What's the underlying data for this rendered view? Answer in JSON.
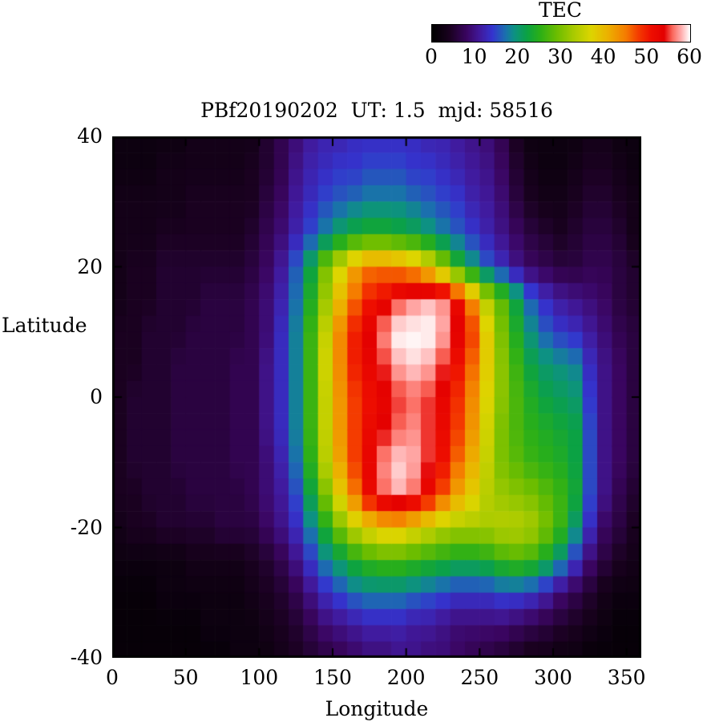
{
  "chart_data": {
    "type": "heatmap",
    "title": "PBf20190202  UT: 1.5  mjd: 58516",
    "xlabel": "Longitude",
    "ylabel": "Latitude",
    "xlim": [
      0,
      360
    ],
    "ylim": [
      -40,
      40
    ],
    "x_start": 0,
    "x_step": 10,
    "y_start": 40,
    "y_step": -5,
    "xtick_values": [
      0,
      50,
      100,
      150,
      200,
      250,
      300,
      350
    ],
    "xtick_labels": [
      "0",
      "50",
      "100",
      "150",
      "200",
      "250",
      "300",
      "350"
    ],
    "ytick_values": [
      40,
      20,
      0,
      -20,
      -40
    ],
    "ytick_labels": [
      "40",
      "20",
      "0",
      "-20",
      "-40"
    ],
    "colorbar": {
      "title": "TEC",
      "min": 0,
      "max": 60,
      "tick_values": [
        0,
        10,
        20,
        30,
        40,
        50,
        60
      ],
      "tick_labels": [
        "0",
        "10",
        "20",
        "30",
        "40",
        "50",
        "60"
      ]
    },
    "units": "TEC",
    "values": [
      [
        2,
        2,
        2,
        2,
        2,
        3,
        3,
        3,
        3,
        3,
        5,
        7,
        9,
        11,
        12,
        12,
        13,
        13,
        13,
        13,
        13,
        12,
        12,
        11,
        10,
        9,
        7,
        4,
        2,
        2,
        2,
        2,
        3,
        3,
        2,
        2
      ],
      [
        2,
        2,
        2,
        3,
        3,
        3,
        3,
        3,
        3,
        4,
        5,
        7,
        10,
        12,
        13,
        14,
        14,
        15,
        15,
        15,
        14,
        14,
        13,
        12,
        11,
        10,
        8,
        5,
        3,
        2,
        2,
        3,
        4,
        4,
        3,
        2
      ],
      [
        3,
        3,
        3,
        3,
        3,
        4,
        4,
        4,
        4,
        4,
        6,
        8,
        11,
        13,
        15,
        16,
        17,
        18,
        18,
        18,
        17,
        16,
        15,
        14,
        12,
        11,
        9,
        6,
        4,
        3,
        3,
        4,
        5,
        5,
        4,
        3
      ],
      [
        3,
        3,
        3,
        4,
        4,
        4,
        4,
        4,
        4,
        5,
        7,
        9,
        12,
        15,
        18,
        21,
        23,
        24,
        24,
        23,
        22,
        20,
        18,
        16,
        14,
        12,
        10,
        8,
        6,
        5,
        4,
        5,
        6,
        6,
        5,
        3
      ],
      [
        3,
        4,
        4,
        5,
        5,
        5,
        5,
        5,
        5,
        6,
        8,
        11,
        16,
        22,
        30,
        36,
        42,
        45,
        45,
        44,
        42,
        38,
        32,
        25,
        20,
        16,
        13,
        10,
        8,
        7,
        6,
        6,
        7,
        7,
        6,
        5
      ],
      [
        3,
        4,
        4,
        5,
        5,
        5,
        6,
        6,
        6,
        7,
        9,
        12,
        17,
        24,
        32,
        40,
        46,
        50,
        52,
        55,
        57,
        58,
        57,
        52,
        44,
        34,
        28,
        22,
        16,
        13,
        11,
        10,
        9,
        8,
        6,
        5
      ],
      [
        4,
        4,
        5,
        5,
        5,
        6,
        6,
        6,
        6,
        7,
        9,
        13,
        18,
        26,
        35,
        44,
        50,
        54,
        57,
        60,
        60,
        60,
        58,
        54,
        48,
        38,
        30,
        24,
        19,
        16,
        14,
        13,
        11,
        9,
        7,
        6
      ],
      [
        4,
        4,
        5,
        5,
        6,
        6,
        6,
        6,
        7,
        7,
        10,
        13,
        18,
        26,
        36,
        44,
        50,
        53,
        55,
        58,
        59,
        58,
        55,
        51,
        46,
        38,
        31,
        26,
        22,
        20,
        19,
        18,
        13,
        10,
        8,
        6
      ],
      [
        4,
        5,
        5,
        5,
        6,
        6,
        6,
        6,
        7,
        7,
        10,
        13,
        18,
        26,
        35,
        43,
        48,
        51,
        53,
        55,
        56,
        55,
        53,
        49,
        44,
        37,
        31,
        27,
        24,
        22,
        21,
        20,
        14,
        10,
        8,
        6
      ],
      [
        4,
        5,
        5,
        5,
        6,
        6,
        6,
        6,
        7,
        7,
        10,
        13,
        18,
        26,
        35,
        43,
        48,
        52,
        54,
        56,
        57,
        55,
        52,
        48,
        43,
        36,
        30,
        27,
        25,
        24,
        23,
        22,
        15,
        10,
        8,
        6
      ],
      [
        4,
        5,
        5,
        5,
        6,
        6,
        6,
        6,
        7,
        7,
        9,
        12,
        17,
        25,
        34,
        42,
        48,
        53,
        57,
        59,
        58,
        55,
        51,
        46,
        41,
        35,
        30,
        28,
        26,
        25,
        24,
        22,
        15,
        10,
        8,
        6
      ],
      [
        4,
        4,
        5,
        5,
        5,
        6,
        6,
        6,
        6,
        7,
        9,
        11,
        15,
        22,
        30,
        38,
        45,
        52,
        56,
        58,
        56,
        52,
        47,
        42,
        38,
        34,
        32,
        31,
        30,
        28,
        26,
        23,
        15,
        10,
        7,
        5
      ],
      [
        3,
        4,
        4,
        5,
        5,
        5,
        5,
        6,
        6,
        6,
        8,
        10,
        13,
        18,
        24,
        30,
        35,
        38,
        40,
        40,
        38,
        36,
        34,
        33,
        33,
        33,
        34,
        34,
        33,
        30,
        26,
        20,
        13,
        8,
        6,
        4
      ],
      [
        2,
        2,
        2,
        2,
        2,
        3,
        3,
        3,
        3,
        4,
        5,
        7,
        10,
        14,
        18,
        21,
        24,
        26,
        27,
        27,
        26,
        25,
        24,
        23,
        23,
        24,
        26,
        27,
        26,
        23,
        19,
        14,
        9,
        6,
        4,
        3
      ],
      [
        1,
        1,
        1,
        2,
        2,
        2,
        2,
        2,
        2,
        3,
        4,
        5,
        7,
        10,
        13,
        15,
        17,
        18,
        18,
        18,
        17,
        16,
        15,
        14,
        14,
        14,
        15,
        15,
        14,
        12,
        9,
        7,
        5,
        3,
        2,
        2
      ],
      [
        1,
        1,
        1,
        1,
        1,
        1,
        2,
        2,
        2,
        2,
        3,
        4,
        5,
        7,
        9,
        10,
        11,
        12,
        12,
        12,
        11,
        11,
        10,
        9,
        9,
        9,
        9,
        8,
        7,
        6,
        5,
        4,
        3,
        2,
        1,
        1
      ],
      [
        1,
        1,
        1,
        1,
        1,
        1,
        1,
        1,
        2,
        2,
        2,
        3,
        4,
        5,
        6,
        7,
        8,
        9,
        9,
        10,
        10,
        9,
        9,
        8,
        7,
        6,
        5,
        4,
        3,
        3,
        2,
        2,
        1,
        1,
        1,
        1
      ]
    ],
    "colormap_stops": [
      [
        0,
        "#000000"
      ],
      [
        4,
        "#1a0120"
      ],
      [
        8,
        "#3a0560"
      ],
      [
        11,
        "#41199b"
      ],
      [
        14,
        "#3434cf"
      ],
      [
        17,
        "#1b6fae"
      ],
      [
        19,
        "#0d9183"
      ],
      [
        22,
        "#0ba244"
      ],
      [
        25,
        "#2aaf18"
      ],
      [
        29,
        "#6cbd00"
      ],
      [
        33,
        "#aacb00"
      ],
      [
        37,
        "#ddd500"
      ],
      [
        41,
        "#ecb000"
      ],
      [
        45,
        "#f57d00"
      ],
      [
        48,
        "#f43c00"
      ],
      [
        51,
        "#ee0e00"
      ],
      [
        54,
        "#e30000"
      ],
      [
        56,
        "#fb6a5e"
      ],
      [
        58,
        "#ffadad"
      ],
      [
        60,
        "#ffffff"
      ]
    ]
  }
}
